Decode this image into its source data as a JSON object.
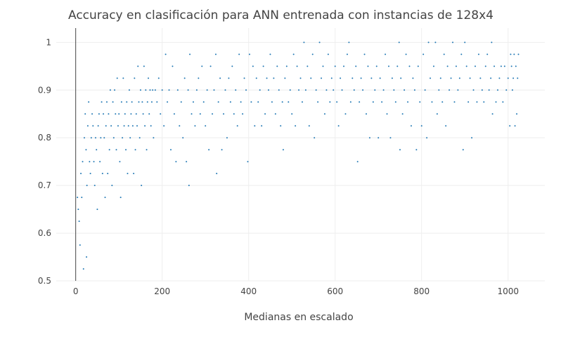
{
  "chart_data": {
    "type": "scatter",
    "title": "Accuracy en clasificación para ANN entrenada con instancias de 128x4",
    "xlabel": "Medianas en escalado",
    "ylabel": "",
    "xlim": [
      -45,
      1085
    ],
    "ylim": [
      0.5,
      1.03
    ],
    "xticks": [
      0,
      200,
      400,
      600,
      800,
      1000
    ],
    "yticks": [
      0.5,
      0.6,
      0.7,
      0.8,
      0.9,
      1.0
    ],
    "ytick_labels": [
      "0.5",
      "0.6",
      "0.7",
      "0.8",
      "0.9",
      "1"
    ],
    "grid": true,
    "marker_color": "#1f77b4",
    "points": [
      [
        4,
        0.675
      ],
      [
        6,
        0.65
      ],
      [
        8,
        0.625
      ],
      [
        10,
        0.575
      ],
      [
        12,
        0.725
      ],
      [
        14,
        0.675
      ],
      [
        16,
        0.75
      ],
      [
        18,
        0.525
      ],
      [
        20,
        0.8
      ],
      [
        22,
        0.85
      ],
      [
        24,
        0.775
      ],
      [
        25,
        0.55
      ],
      [
        26,
        0.7
      ],
      [
        28,
        0.825
      ],
      [
        30,
        0.875
      ],
      [
        32,
        0.75
      ],
      [
        34,
        0.725
      ],
      [
        36,
        0.8
      ],
      [
        38,
        0.85
      ],
      [
        40,
        0.825
      ],
      [
        42,
        0.75
      ],
      [
        44,
        0.7
      ],
      [
        46,
        0.8
      ],
      [
        48,
        0.775
      ],
      [
        50,
        0.65
      ],
      [
        52,
        0.825
      ],
      [
        54,
        0.85
      ],
      [
        56,
        0.75
      ],
      [
        58,
        0.8
      ],
      [
        60,
        0.875
      ],
      [
        62,
        0.725
      ],
      [
        64,
        0.85
      ],
      [
        66,
        0.8
      ],
      [
        68,
        0.675
      ],
      [
        70,
        0.825
      ],
      [
        72,
        0.875
      ],
      [
        74,
        0.725
      ],
      [
        76,
        0.85
      ],
      [
        78,
        0.775
      ],
      [
        80,
        0.9
      ],
      [
        82,
        0.825
      ],
      [
        84,
        0.7
      ],
      [
        86,
        0.875
      ],
      [
        88,
        0.8
      ],
      [
        90,
        0.9
      ],
      [
        92,
        0.85
      ],
      [
        94,
        0.775
      ],
      [
        96,
        0.925
      ],
      [
        98,
        0.825
      ],
      [
        100,
        0.85
      ],
      [
        102,
        0.75
      ],
      [
        104,
        0.675
      ],
      [
        106,
        0.875
      ],
      [
        108,
        0.8
      ],
      [
        110,
        0.925
      ],
      [
        112,
        0.825
      ],
      [
        114,
        0.85
      ],
      [
        116,
        0.775
      ],
      [
        118,
        0.875
      ],
      [
        120,
        0.725
      ],
      [
        122,
        0.825
      ],
      [
        124,
        0.9
      ],
      [
        126,
        0.8
      ],
      [
        128,
        0.85
      ],
      [
        130,
        0.875
      ],
      [
        132,
        0.825
      ],
      [
        134,
        0.725
      ],
      [
        136,
        0.925
      ],
      [
        138,
        0.775
      ],
      [
        140,
        0.85
      ],
      [
        142,
        0.825
      ],
      [
        144,
        0.95
      ],
      [
        146,
        0.875
      ],
      [
        148,
        0.8
      ],
      [
        150,
        0.9
      ],
      [
        152,
        0.7
      ],
      [
        154,
        0.875
      ],
      [
        156,
        0.85
      ],
      [
        158,
        0.95
      ],
      [
        160,
        0.825
      ],
      [
        162,
        0.9
      ],
      [
        164,
        0.775
      ],
      [
        166,
        0.875
      ],
      [
        168,
        0.925
      ],
      [
        170,
        0.85
      ],
      [
        172,
        0.9
      ],
      [
        174,
        0.825
      ],
      [
        176,
        0.875
      ],
      [
        178,
        0.9
      ],
      [
        180,
        0.8
      ],
      [
        184,
        0.9
      ],
      [
        188,
        0.875
      ],
      [
        192,
        0.925
      ],
      [
        196,
        0.85
      ],
      [
        200,
        0.9
      ],
      [
        204,
        0.825
      ],
      [
        208,
        0.975
      ],
      [
        212,
        0.875
      ],
      [
        216,
        0.9
      ],
      [
        220,
        0.775
      ],
      [
        224,
        0.95
      ],
      [
        228,
        0.85
      ],
      [
        232,
        0.75
      ],
      [
        236,
        0.9
      ],
      [
        240,
        0.825
      ],
      [
        244,
        0.875
      ],
      [
        248,
        0.8
      ],
      [
        252,
        0.925
      ],
      [
        256,
        0.75
      ],
      [
        260,
        0.9
      ],
      [
        262,
        0.7
      ],
      [
        264,
        0.975
      ],
      [
        268,
        0.85
      ],
      [
        272,
        0.875
      ],
      [
        276,
        0.825
      ],
      [
        280,
        0.9
      ],
      [
        284,
        0.925
      ],
      [
        288,
        0.85
      ],
      [
        292,
        0.95
      ],
      [
        296,
        0.875
      ],
      [
        300,
        0.825
      ],
      [
        304,
        0.9
      ],
      [
        308,
        0.775
      ],
      [
        312,
        0.95
      ],
      [
        316,
        0.85
      ],
      [
        320,
        0.9
      ],
      [
        324,
        0.975
      ],
      [
        326,
        0.725
      ],
      [
        330,
        0.875
      ],
      [
        334,
        0.925
      ],
      [
        338,
        0.775
      ],
      [
        342,
        0.85
      ],
      [
        346,
        0.9
      ],
      [
        350,
        0.8
      ],
      [
        354,
        0.925
      ],
      [
        358,
        0.875
      ],
      [
        362,
        0.95
      ],
      [
        366,
        0.85
      ],
      [
        370,
        0.9
      ],
      [
        374,
        0.825
      ],
      [
        378,
        0.975
      ],
      [
        382,
        0.875
      ],
      [
        386,
        0.85
      ],
      [
        390,
        0.925
      ],
      [
        394,
        0.9
      ],
      [
        398,
        0.75
      ],
      [
        402,
        0.975
      ],
      [
        406,
        0.875
      ],
      [
        410,
        0.95
      ],
      [
        414,
        0.825
      ],
      [
        418,
        0.925
      ],
      [
        422,
        0.875
      ],
      [
        426,
        0.9
      ],
      [
        430,
        0.825
      ],
      [
        434,
        0.95
      ],
      [
        438,
        0.85
      ],
      [
        442,
        0.925
      ],
      [
        446,
        0.9
      ],
      [
        450,
        0.975
      ],
      [
        454,
        0.875
      ],
      [
        458,
        0.925
      ],
      [
        462,
        0.85
      ],
      [
        466,
        0.95
      ],
      [
        470,
        0.9
      ],
      [
        474,
        0.825
      ],
      [
        478,
        0.875
      ],
      [
        480,
        0.775
      ],
      [
        484,
        0.925
      ],
      [
        488,
        0.95
      ],
      [
        492,
        0.875
      ],
      [
        496,
        0.9
      ],
      [
        500,
        0.85
      ],
      [
        504,
        0.975
      ],
      [
        508,
        0.825
      ],
      [
        512,
        0.95
      ],
      [
        516,
        0.9
      ],
      [
        520,
        0.925
      ],
      [
        524,
        0.875
      ],
      [
        528,
        1.0
      ],
      [
        532,
        0.9
      ],
      [
        536,
        0.95
      ],
      [
        540,
        0.825
      ],
      [
        544,
        0.925
      ],
      [
        548,
        0.975
      ],
      [
        552,
        0.8
      ],
      [
        556,
        0.9
      ],
      [
        560,
        0.875
      ],
      [
        564,
        1.0
      ],
      [
        568,
        0.925
      ],
      [
        572,
        0.95
      ],
      [
        576,
        0.85
      ],
      [
        580,
        0.9
      ],
      [
        584,
        0.975
      ],
      [
        588,
        0.875
      ],
      [
        592,
        0.925
      ],
      [
        596,
        0.9
      ],
      [
        600,
        0.95
      ],
      [
        604,
        0.875
      ],
      [
        608,
        0.825
      ],
      [
        612,
        0.925
      ],
      [
        616,
        0.9
      ],
      [
        620,
        0.95
      ],
      [
        624,
        0.85
      ],
      [
        628,
        0.975
      ],
      [
        632,
        1.0
      ],
      [
        636,
        0.875
      ],
      [
        640,
        0.925
      ],
      [
        644,
        0.9
      ],
      [
        648,
        0.95
      ],
      [
        652,
        0.75
      ],
      [
        656,
        0.875
      ],
      [
        660,
        0.925
      ],
      [
        664,
        0.9
      ],
      [
        668,
        0.975
      ],
      [
        672,
        0.85
      ],
      [
        676,
        0.95
      ],
      [
        680,
        0.8
      ],
      [
        684,
        0.925
      ],
      [
        688,
        0.875
      ],
      [
        692,
        0.9
      ],
      [
        696,
        0.95
      ],
      [
        700,
        0.8
      ],
      [
        704,
        0.925
      ],
      [
        708,
        0.875
      ],
      [
        712,
        0.9
      ],
      [
        716,
        0.975
      ],
      [
        720,
        0.85
      ],
      [
        724,
        0.95
      ],
      [
        728,
        0.8
      ],
      [
        732,
        0.925
      ],
      [
        736,
        0.9
      ],
      [
        740,
        0.875
      ],
      [
        744,
        0.95
      ],
      [
        748,
        1.0
      ],
      [
        750,
        0.775
      ],
      [
        752,
        0.925
      ],
      [
        756,
        0.85
      ],
      [
        760,
        0.9
      ],
      [
        764,
        0.975
      ],
      [
        768,
        0.875
      ],
      [
        772,
        0.95
      ],
      [
        776,
        0.825
      ],
      [
        780,
        0.925
      ],
      [
        784,
        0.9
      ],
      [
        788,
        0.775
      ],
      [
        792,
        0.95
      ],
      [
        796,
        0.875
      ],
      [
        800,
        0.825
      ],
      [
        804,
        0.975
      ],
      [
        808,
        0.9
      ],
      [
        812,
        0.8
      ],
      [
        816,
        1.0
      ],
      [
        820,
        0.925
      ],
      [
        824,
        0.875
      ],
      [
        828,
        0.95
      ],
      [
        832,
        1.0
      ],
      [
        836,
        0.85
      ],
      [
        840,
        0.9
      ],
      [
        844,
        0.925
      ],
      [
        848,
        0.875
      ],
      [
        852,
        0.975
      ],
      [
        856,
        0.825
      ],
      [
        860,
        0.95
      ],
      [
        864,
        0.9
      ],
      [
        868,
        0.925
      ],
      [
        872,
        1.0
      ],
      [
        876,
        0.875
      ],
      [
        880,
        0.95
      ],
      [
        884,
        0.9
      ],
      [
        888,
        0.925
      ],
      [
        892,
        0.975
      ],
      [
        896,
        0.775
      ],
      [
        900,
        1.0
      ],
      [
        904,
        0.95
      ],
      [
        908,
        0.875
      ],
      [
        912,
        0.925
      ],
      [
        916,
        0.8
      ],
      [
        920,
        0.9
      ],
      [
        924,
        0.95
      ],
      [
        928,
        0.875
      ],
      [
        932,
        0.975
      ],
      [
        936,
        0.925
      ],
      [
        940,
        0.9
      ],
      [
        944,
        0.875
      ],
      [
        948,
        0.95
      ],
      [
        952,
        0.975
      ],
      [
        956,
        0.9
      ],
      [
        960,
        0.925
      ],
      [
        962,
        1.0
      ],
      [
        964,
        0.85
      ],
      [
        968,
        0.95
      ],
      [
        972,
        0.875
      ],
      [
        976,
        0.9
      ],
      [
        980,
        0.925
      ],
      [
        984,
        0.95
      ],
      [
        988,
        0.875
      ],
      [
        992,
        0.95
      ],
      [
        996,
        0.9
      ],
      [
        1000,
        0.925
      ],
      [
        1004,
        0.825
      ],
      [
        1006,
        0.975
      ],
      [
        1008,
        0.95
      ],
      [
        1010,
        0.9
      ],
      [
        1012,
        0.925
      ],
      [
        1014,
        0.975
      ],
      [
        1016,
        0.825
      ],
      [
        1018,
        0.95
      ],
      [
        1020,
        0.85
      ],
      [
        1022,
        0.925
      ],
      [
        1024,
        0.975
      ]
    ]
  }
}
